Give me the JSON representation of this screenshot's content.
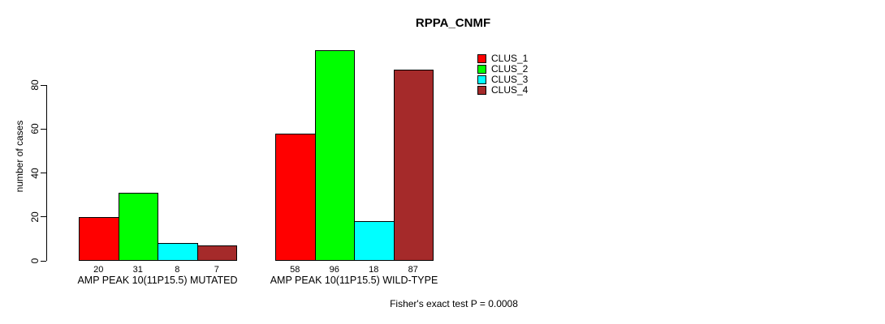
{
  "chart_data": {
    "type": "bar",
    "title": "RPPA_CNMF",
    "ylabel": "number of cases",
    "xlabel": "",
    "yticks": [
      0,
      20,
      40,
      60,
      80
    ],
    "ylim": [
      0,
      96
    ],
    "grid": false,
    "legend_position": "top-right-outside-plot",
    "bar_value_labels_shown": true,
    "categories": [
      "AMP PEAK 10(11P15.5) MUTATED",
      "AMP PEAK 10(11P15.5) WILD-TYPE"
    ],
    "series": [
      {
        "name": "CLUS_1",
        "color": "#ff0000",
        "values": [
          20,
          58
        ]
      },
      {
        "name": "CLUS_2",
        "color": "#00ff00",
        "values": [
          31,
          96
        ]
      },
      {
        "name": "CLUS_3",
        "color": "#00ffff",
        "values": [
          8,
          18
        ]
      },
      {
        "name": "CLUS_4",
        "color": "#a52a2a",
        "values": [
          7,
          87
        ]
      }
    ],
    "annotation": "Fisher's exact test P = 0.0008"
  }
}
